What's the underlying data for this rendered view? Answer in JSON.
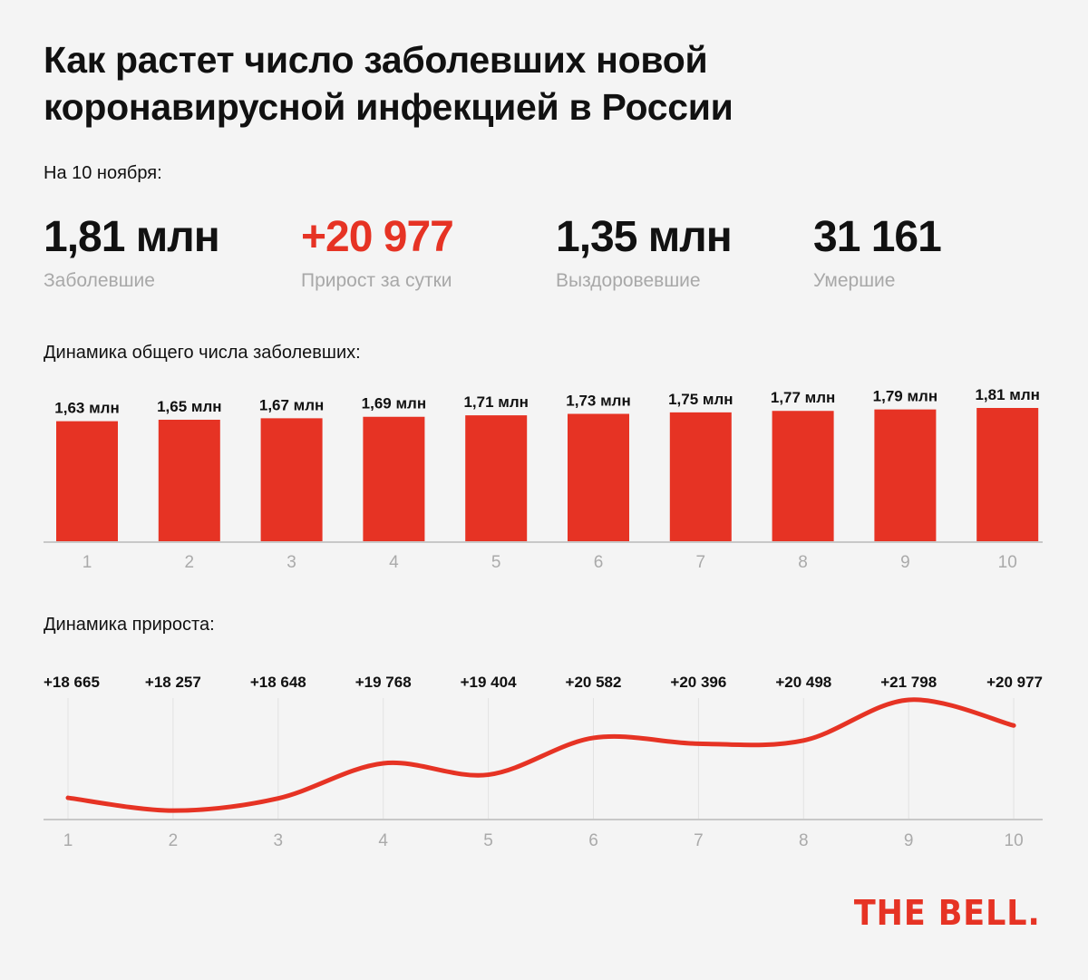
{
  "title": "Как растет число заболевших новой коронавирусной инфекцией в России",
  "as_of": "На 10 ноября:",
  "stats": [
    {
      "value": "1,81 млн",
      "label": "Заболевшие",
      "color": "#111111"
    },
    {
      "value": "+20 977",
      "label": "Прирост за сутки",
      "color": "#e63324"
    },
    {
      "value": "1,35 млн",
      "label": "Выздоровевшие",
      "color": "#111111"
    },
    {
      "value": "31 161",
      "label": "Умершие",
      "color": "#111111"
    }
  ],
  "logo": "THE BELL.",
  "chart_data": [
    {
      "type": "bar",
      "title": "Динамика общего числа заболевших:",
      "categories": [
        "1",
        "2",
        "3",
        "4",
        "5",
        "6",
        "7",
        "8",
        "9",
        "10"
      ],
      "values": [
        1.63,
        1.65,
        1.67,
        1.69,
        1.71,
        1.73,
        1.75,
        1.77,
        1.79,
        1.81
      ],
      "data_labels": [
        "1,63 млн",
        "1,65 млн",
        "1,67 млн",
        "1,69 млн",
        "1,71 млн",
        "1,73 млн",
        "1,75 млн",
        "1,77 млн",
        "1,79 млн",
        "1,81 млн"
      ],
      "unit": "млн",
      "ylim": [
        0,
        1.81
      ],
      "color": "#e63324"
    },
    {
      "type": "line",
      "title": "Динамика прироста:",
      "categories": [
        "1",
        "2",
        "3",
        "4",
        "5",
        "6",
        "7",
        "8",
        "9",
        "10"
      ],
      "values": [
        18665,
        18257,
        18648,
        19768,
        19404,
        20582,
        20396,
        20498,
        21798,
        20977
      ],
      "data_labels": [
        "+18 665",
        "+18 257",
        "+18 648",
        "+19 768",
        "+19 404",
        "+20 582",
        "+20 396",
        "+20 498",
        "+21 798",
        "+20 977"
      ],
      "ylim": [
        18000,
        22000
      ],
      "grid": true,
      "color": "#e63324"
    }
  ]
}
